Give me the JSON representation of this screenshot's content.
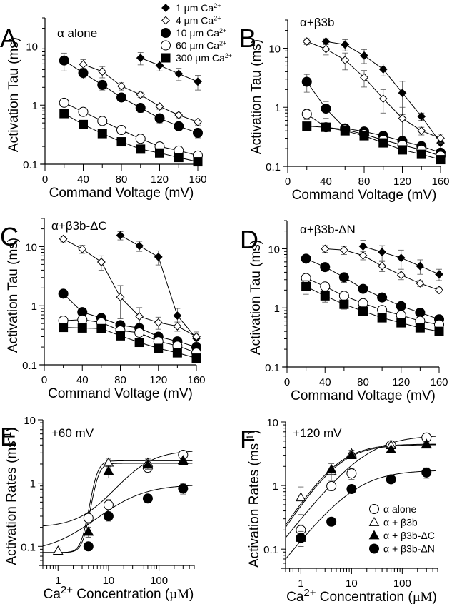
{
  "figure": {
    "legend_top": {
      "items": [
        {
          "marker": "diamond-filled",
          "label": "1 µm Ca",
          "sup": "2+"
        },
        {
          "marker": "diamond-open",
          "label": "4 µm Ca",
          "sup": "2+"
        },
        {
          "marker": "circle-filled",
          "label": "10 µm Ca",
          "sup": "2+"
        },
        {
          "marker": "circle-open",
          "label": "60 µm Ca",
          "sup": "2+"
        },
        {
          "marker": "square-filled",
          "label": "300 µm Ca",
          "sup": "2+"
        }
      ]
    },
    "legend_bottom": {
      "items": [
        {
          "marker": "circle-open",
          "label": "α alone"
        },
        {
          "marker": "triangle-open",
          "label": "α + β3b"
        },
        {
          "marker": "triangle-filled",
          "label": "α + β3b-ΔC"
        },
        {
          "marker": "circle-filled",
          "label": "α + β3b-ΔN"
        }
      ]
    }
  },
  "chart_data": [
    {
      "panel": "A",
      "type": "scatter",
      "scale": "log-y",
      "title": "α alone",
      "xlabel": "Command Voltage (mV)",
      "ylabel": "Activation Tau (ms)",
      "xlim": [
        0,
        160
      ],
      "ylim": [
        0.1,
        30
      ],
      "xticks": [
        0,
        40,
        80,
        120,
        160
      ],
      "yticks": [
        0.1,
        1,
        10
      ],
      "ytick_labels": [
        "0.1",
        "1",
        "10"
      ],
      "series": [
        {
          "name": "1 µm Ca2+",
          "marker": "diamond-filled",
          "x": [
            100,
            120,
            140,
            160
          ],
          "y": [
            6.3,
            4.7,
            3.4,
            2.5
          ],
          "err": [
            1.5,
            0.9,
            0.8,
            0.7
          ]
        },
        {
          "name": "4 µm Ca2+",
          "marker": "diamond-open",
          "x": [
            40,
            60,
            80,
            100,
            120,
            140,
            160
          ],
          "y": [
            4.9,
            3.7,
            2.1,
            1.5,
            0.95,
            0.68,
            0.52
          ],
          "err": [
            1.0,
            0.8,
            0.3,
            0.15,
            0.1,
            0.07,
            0.06
          ]
        },
        {
          "name": "10 µm Ca2+",
          "marker": "circle-filled",
          "x": [
            20,
            40,
            60,
            80,
            100,
            120,
            140,
            160
          ],
          "y": [
            5.7,
            3.5,
            2.2,
            1.35,
            0.9,
            0.6,
            0.44,
            0.34
          ],
          "err": [
            1.9,
            0.7,
            0.4,
            0.2,
            0.15,
            0.1,
            0.07,
            0.06
          ]
        },
        {
          "name": "60 µm Ca2+",
          "marker": "circle-open",
          "x": [
            20,
            40,
            60,
            80,
            100,
            120,
            140,
            160
          ],
          "y": [
            1.1,
            0.77,
            0.54,
            0.38,
            0.27,
            0.2,
            0.17,
            0.14
          ],
          "err": [
            0.05,
            0.05,
            0.04,
            0.03,
            0.02,
            0.02,
            0.015,
            0.01
          ]
        },
        {
          "name": "300 µm Ca2+",
          "marker": "square-filled",
          "x": [
            20,
            40,
            60,
            80,
            100,
            120,
            140,
            160
          ],
          "y": [
            0.72,
            0.47,
            0.33,
            0.24,
            0.18,
            0.155,
            0.13,
            0.11
          ],
          "err": [
            0,
            0,
            0,
            0,
            0,
            0,
            0,
            0
          ]
        }
      ]
    },
    {
      "panel": "B",
      "type": "scatter",
      "scale": "log-y",
      "title": "α+β3b",
      "xlabel": "Command Voltage (mV)",
      "ylabel": "Activation Tau (ms)",
      "xlim": [
        0,
        160
      ],
      "ylim": [
        0.1,
        30
      ],
      "xticks": [
        0,
        40,
        80,
        120,
        160
      ],
      "yticks": [
        0.1,
        1,
        10
      ],
      "ytick_labels": [
        "0.1",
        "1",
        "10"
      ],
      "series": [
        {
          "name": "1 µm Ca2+",
          "marker": "diamond-filled",
          "x": [
            40,
            60,
            80,
            100,
            120,
            140,
            160
          ],
          "y": [
            13,
            11.5,
            7.5,
            4.4,
            1.75,
            0.7,
            0.25
          ],
          "err": [
            1.5,
            2.5,
            2,
            1,
            1,
            0.1,
            0.05
          ]
        },
        {
          "name": "4 µm Ca2+",
          "marker": "diamond-open",
          "x": [
            20,
            40,
            60,
            80,
            100,
            120,
            140,
            160
          ],
          "y": [
            13,
            9.7,
            6.3,
            3.2,
            1.4,
            0.65,
            0.4,
            0.3
          ],
          "err": [
            1.5,
            2,
            2,
            1,
            0.6,
            0.35,
            0.06,
            0.05
          ]
        },
        {
          "name": "10 µm Ca2+",
          "marker": "circle-filled",
          "x": [
            20,
            40,
            60,
            80,
            100,
            120,
            140,
            160
          ],
          "y": [
            2.7,
            0.95,
            0.44,
            0.39,
            0.33,
            0.27,
            0.22,
            0.17
          ],
          "err": [
            0.9,
            0.3,
            0.04,
            0.04,
            0.03,
            0.03,
            0.02,
            0.02
          ]
        },
        {
          "name": "60 µm Ca2+",
          "marker": "circle-open",
          "x": [
            20,
            40,
            60,
            80,
            100,
            120,
            140,
            160
          ],
          "y": [
            0.77,
            0.46,
            0.42,
            0.35,
            0.28,
            0.23,
            0.19,
            0.15
          ],
          "err": [
            0.15,
            0.04,
            0.03,
            0.03,
            0.02,
            0.02,
            0.02,
            0.015
          ]
        },
        {
          "name": "300 µm Ca2+",
          "marker": "square-filled",
          "x": [
            20,
            40,
            60,
            80,
            100,
            120,
            140,
            160
          ],
          "y": [
            0.48,
            0.46,
            0.4,
            0.33,
            0.25,
            0.19,
            0.16,
            0.13
          ],
          "err": [
            0.06,
            0.04,
            0.03,
            0.03,
            0.02,
            0.02,
            0.015,
            0.01
          ]
        }
      ]
    },
    {
      "panel": "C",
      "type": "scatter",
      "scale": "log-y",
      "title": "α+β3b-ΔC",
      "xlabel": "Command Voltage (mV)",
      "ylabel": "Activation Tau (ms)",
      "xlim": [
        0,
        160
      ],
      "ylim": [
        0.1,
        30
      ],
      "xticks": [
        0,
        40,
        80,
        120,
        160
      ],
      "yticks": [
        0.1,
        1,
        10
      ],
      "ytick_labels": [
        "0.1",
        "1",
        "10"
      ],
      "series": [
        {
          "name": "1 µm Ca2+",
          "marker": "diamond-filled",
          "x": [
            80,
            100,
            120,
            140,
            160
          ],
          "y": [
            15.5,
            10.3,
            6.7,
            0.68,
            0.28
          ],
          "err": [
            2.5,
            2,
            1.8,
            0.22,
            0.05
          ]
        },
        {
          "name": "4 µm Ca2+",
          "marker": "diamond-open",
          "x": [
            20,
            40,
            60,
            80,
            100,
            120,
            140,
            160
          ],
          "y": [
            13.5,
            9.1,
            5.5,
            1.4,
            0.66,
            0.52,
            0.45,
            0.3
          ],
          "err": [
            1.5,
            1.4,
            1.5,
            0.8,
            0.27,
            0.12,
            0.08,
            0.06
          ]
        },
        {
          "name": "10 µm Ca2+",
          "marker": "circle-filled",
          "x": [
            20,
            40,
            60,
            80,
            100,
            120,
            140,
            160
          ],
          "y": [
            1.6,
            0.78,
            0.62,
            0.47,
            0.42,
            0.3,
            0.25,
            0.2
          ],
          "err": [
            0,
            0.05,
            0.05,
            0.04,
            0.04,
            0.03,
            0.02,
            0.02
          ]
        },
        {
          "name": "60 µm Ca2+",
          "marker": "circle-open",
          "x": [
            20,
            40,
            60,
            80,
            100,
            120,
            140,
            160
          ],
          "y": [
            0.56,
            0.58,
            0.52,
            0.38,
            0.35,
            0.25,
            0.21,
            0.16
          ],
          "err": [
            0.1,
            0.05,
            0.05,
            0.04,
            0.03,
            0.02,
            0.02,
            0.015
          ]
        },
        {
          "name": "300 µm Ca2+",
          "marker": "square-filled",
          "x": [
            20,
            40,
            60,
            80,
            100,
            120,
            140,
            160
          ],
          "y": [
            0.43,
            0.42,
            0.41,
            0.31,
            0.24,
            0.19,
            0.16,
            0.13
          ],
          "err": [
            0,
            0,
            0,
            0,
            0,
            0,
            0,
            0
          ]
        }
      ]
    },
    {
      "panel": "D",
      "type": "scatter",
      "scale": "log-y",
      "title": "α+β3b-ΔN",
      "xlabel": "Command Voltage (mV)",
      "ylabel": "Activation Tau (ms)",
      "xlim": [
        0,
        160
      ],
      "ylim": [
        0.1,
        30
      ],
      "xticks": [
        0,
        40,
        80,
        120,
        160
      ],
      "yticks": [
        0.1,
        1,
        10
      ],
      "ytick_labels": [
        "0.1",
        "1",
        "10"
      ],
      "series": [
        {
          "name": "1 µm Ca2+",
          "marker": "diamond-filled",
          "x": [
            80,
            100,
            120,
            140,
            160
          ],
          "y": [
            11,
            8.8,
            7,
            5.1,
            3.7
          ],
          "err": [
            3,
            2.5,
            2.5,
            1.4,
            0.8
          ]
        },
        {
          "name": "4 µm Ca2+",
          "marker": "diamond-open",
          "x": [
            40,
            60,
            80,
            100,
            120,
            140,
            160
          ],
          "y": [
            10,
            9.5,
            7.7,
            5.1,
            3.6,
            2.6,
            2.0
          ],
          "err": [
            1.3,
            1.5,
            1.2,
            1.0,
            0.6,
            0.3,
            0.2
          ]
        },
        {
          "name": "10 µm Ca2+",
          "marker": "circle-filled",
          "x": [
            20,
            40,
            60,
            80,
            100,
            120,
            140,
            160
          ],
          "y": [
            6.8,
            4.9,
            3.3,
            2.1,
            1.5,
            1.07,
            0.83,
            0.64
          ],
          "err": [
            0,
            0,
            0.6,
            0,
            0,
            0,
            0,
            0
          ]
        },
        {
          "name": "60 µm Ca2+",
          "marker": "circle-open",
          "x": [
            20,
            40,
            60,
            80,
            100,
            120,
            140,
            160
          ],
          "y": [
            3.2,
            2.3,
            1.6,
            1.2,
            0.92,
            0.75,
            0.6,
            0.52
          ],
          "err": [
            0.3,
            0.3,
            0.15,
            0.1,
            0.08,
            0.07,
            0.05,
            0.05
          ]
        },
        {
          "name": "300 µm Ca2+",
          "marker": "square-filled",
          "x": [
            20,
            40,
            60,
            80,
            100,
            120,
            140,
            160
          ],
          "y": [
            2.3,
            1.6,
            1.15,
            0.88,
            0.68,
            0.56,
            0.46,
            0.4
          ],
          "err": [
            0.6,
            0.35,
            0.2,
            0.15,
            0.1,
            0.07,
            0.06,
            0.05
          ]
        }
      ]
    },
    {
      "panel": "E",
      "type": "scatter",
      "scale": "log-log",
      "title": "+60 mV",
      "xlabel": "Ca2+ Concentration (µM)",
      "ylabel": "Activation Rates (ms-1)",
      "xlim": [
        0.5,
        500
      ],
      "ylim": [
        0.05,
        10
      ],
      "xticks": [
        1,
        10,
        100
      ],
      "yticks": [
        0.1,
        1,
        10
      ],
      "ytick_labels": [
        "0.1",
        "1",
        "10"
      ],
      "series": [
        {
          "name": "α alone",
          "marker": "circle-open",
          "x": [
            4,
            10,
            60,
            300
          ],
          "y": [
            0.28,
            0.45,
            1.75,
            2.8
          ],
          "err": [
            0.05,
            0.1,
            0.25,
            0.4
          ],
          "fit": {
            "min": 0.2,
            "max": 3.3,
            "k": 40,
            "n": 1.3
          }
        },
        {
          "name": "α + β3b",
          "marker": "triangle-open",
          "x": [
            1,
            4,
            10,
            60,
            300
          ],
          "y": [
            0.085,
            0.17,
            2.1,
            2.1,
            2.3
          ],
          "err": [
            0.01,
            0.03,
            0.3,
            0.3,
            0.2
          ],
          "fit": {
            "min": 0.08,
            "max": 2.25,
            "k": 5.5,
            "n": 6
          }
        },
        {
          "name": "α + β3b-ΔC",
          "marker": "triangle-filled",
          "x": [
            4,
            10,
            60,
            300
          ],
          "y": [
            0.17,
            1.55,
            1.95,
            2.2
          ],
          "err": [
            0.03,
            0.35,
            0.3,
            0.2
          ],
          "fit": {
            "min": 0.08,
            "max": 2.05,
            "k": 5.8,
            "n": 6
          }
        },
        {
          "name": "α + β3b-ΔN",
          "marker": "circle-filled",
          "x": [
            4,
            10,
            60,
            300
          ],
          "y": [
            0.1,
            0.3,
            0.57,
            0.82
          ],
          "err": [
            0.015,
            0.05,
            0.06,
            0.15
          ],
          "fit": {
            "min": 0.08,
            "max": 0.95,
            "k": 20,
            "n": 1.0
          }
        }
      ]
    },
    {
      "panel": "F",
      "type": "scatter",
      "scale": "log-log",
      "title": "+120 mV",
      "xlabel": "Ca2+ Concentration (µM)",
      "ylabel": "Activation Rates (ms-1)",
      "xlim": [
        0.5,
        500
      ],
      "ylim": [
        0.05,
        10
      ],
      "xticks": [
        1,
        10,
        100
      ],
      "yticks": [
        0.1,
        1,
        10
      ],
      "ytick_labels": [
        "0.1",
        "1",
        "10"
      ],
      "series": [
        {
          "name": "α alone",
          "marker": "circle-open",
          "x": [
            1,
            4,
            10,
            60,
            300
          ],
          "y": [
            0.2,
            0.98,
            1.55,
            4.3,
            5.7
          ],
          "err": [
            0.04,
            0.15,
            0.3,
            0.4,
            0.5
          ],
          "fit": {
            "min": 0.0,
            "max": 6.2,
            "k": 20,
            "n": 1.0
          }
        },
        {
          "name": "α + β3b",
          "marker": "triangle-open",
          "x": [
            1,
            4,
            10,
            60,
            300
          ],
          "y": [
            0.65,
            1.7,
            3.2,
            4.3,
            4.5
          ],
          "err": [
            0.3,
            0.5,
            0.4,
            0.4,
            0.3
          ],
          "fit": {
            "min": 0.0,
            "max": 4.5,
            "k": 5.5,
            "n": 1.2
          }
        },
        {
          "name": "α + β3b-ΔC",
          "marker": "triangle-filled",
          "x": [
            1,
            4,
            10,
            60,
            300
          ],
          "y": [
            0.15,
            1.8,
            3.0,
            3.7,
            4.4
          ],
          "err": [
            0.04,
            0.3,
            0.3,
            0.3,
            0.3
          ],
          "fit": {
            "min": 0.0,
            "max": 4.4,
            "k": 5.8,
            "n": 1.2
          }
        },
        {
          "name": "α + β3b-ΔN",
          "marker": "circle-filled",
          "x": [
            1,
            4,
            10,
            60,
            300
          ],
          "y": [
            0.15,
            0.27,
            0.88,
            1.25,
            1.6
          ],
          "err": [
            0.04,
            0,
            0,
            0,
            0.3
          ],
          "fit": {
            "min": 0.0,
            "max": 1.75,
            "k": 12,
            "n": 1.0
          }
        }
      ]
    }
  ]
}
